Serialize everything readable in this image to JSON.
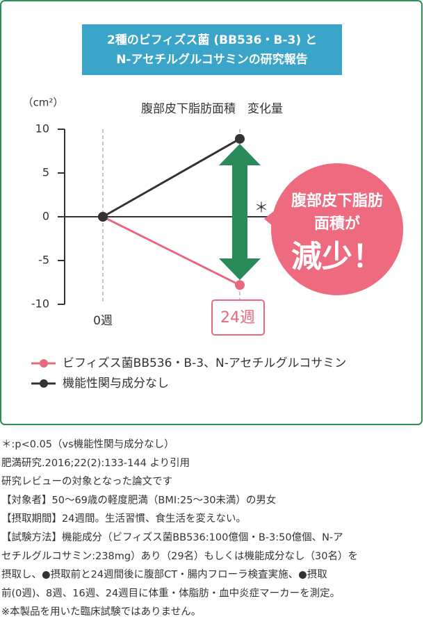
{
  "panel_title": [
    "2種のビフィズス菌 (BB536・B-3) と",
    "N-アセチルグルコサミンの研究報告"
  ],
  "chart_data": {
    "type": "line",
    "title": "腹部皮下脂肪面積　変化量",
    "y_label": "（cm²）",
    "categories": [
      "0週",
      "24週"
    ],
    "series": [
      {
        "name": "ビフィズス菌BB536・B-3、N-アセチルグルコサミン",
        "color": "#e8697e",
        "values": [
          0,
          -7.8
        ]
      },
      {
        "name": "機能性関与成分なし",
        "color": "#333333",
        "values": [
          0,
          8.9
        ]
      }
    ],
    "ylim": [
      -10,
      10
    ],
    "yticks": [
      10,
      5,
      0,
      -5,
      -10
    ],
    "annotation": "＊",
    "callout": [
      "腹部皮下脂肪",
      "面積が",
      "減少！"
    ],
    "arrow_color": "#2a8a5a",
    "callout_color": "#ee6b7f"
  },
  "notes": [
    "＊:p<0.05（vs機能性関与成分なし）",
    "肥満研究.2016;22(2):133-144 より引用",
    "研究レビューの対象となった論文です",
    "【対象者】50～69歳の軽度肥満（BMI:25～30未満）の男女",
    "【摂取期間】24週間。生活習慣、食生活を変えない。",
    "【試験方法】機能成分（ビフィズス菌BB536:100億個・B-3:50億個、N-ア",
    "セチルグルコサミン:238mg）あり（29名）もしくは機能成分なし（30名）を",
    "摂取し、●摂取前と24週間後に腹部CT・腸内フローラ検査実施、●摂取",
    "前(0週)、8週、16週、24週目に体重・体脂肪・血中炎症マーカーを測定。",
    "※本製品を用いた臨床試験ではありません。"
  ]
}
